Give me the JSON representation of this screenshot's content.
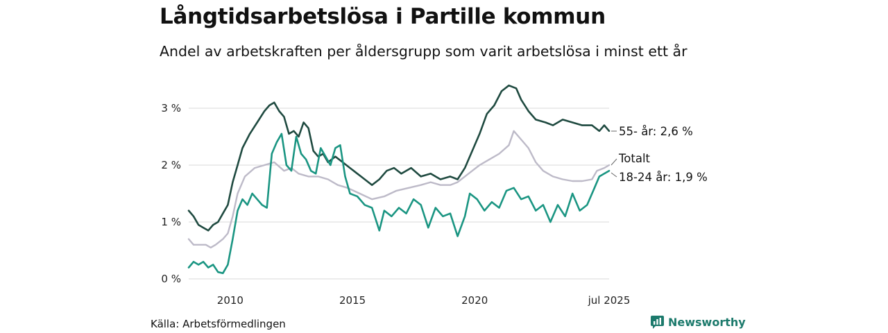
{
  "title": "Långtidsarbetslösa i Partille kommun",
  "subtitle": "Andel av arbetskraften per åldersgrupp som varit arbetslösa i minst ett år",
  "source": "Källa: Arbetsförmedlingen",
  "brand": {
    "name": "Newsworthy",
    "color": "#1c7a6c"
  },
  "chart_data": {
    "type": "line",
    "title": "Långtidsarbetslösa i Partille kommun",
    "subtitle": "Andel av arbetskraften per åldersgrupp som varit arbetslösa i minst ett år",
    "xlabel": "",
    "ylabel": "",
    "xlim": [
      2008.3,
      2025.5
    ],
    "ylim": [
      0,
      3.5
    ],
    "grid": true,
    "legend": "end-of-line labels",
    "x_ticks": [
      {
        "value": 2010,
        "label": "2010"
      },
      {
        "value": 2015,
        "label": "2015"
      },
      {
        "value": 2020,
        "label": "2020"
      },
      {
        "value": 2025.5,
        "label": "jul 2025"
      }
    ],
    "y_ticks": [
      {
        "value": 0,
        "label": "0 %"
      },
      {
        "value": 1,
        "label": "1 %"
      },
      {
        "value": 2,
        "label": "2 %"
      },
      {
        "value": 3,
        "label": "3 %"
      }
    ],
    "series": [
      {
        "name": "Totalt",
        "end_label": "Totalt",
        "color": "#bdbac8",
        "points": [
          [
            2008.3,
            0.7
          ],
          [
            2008.5,
            0.6
          ],
          [
            2009.0,
            0.6
          ],
          [
            2009.2,
            0.55
          ],
          [
            2009.4,
            0.6
          ],
          [
            2009.7,
            0.7
          ],
          [
            2009.9,
            0.8
          ],
          [
            2010.1,
            1.1
          ],
          [
            2010.3,
            1.5
          ],
          [
            2010.6,
            1.8
          ],
          [
            2011.0,
            1.95
          ],
          [
            2011.4,
            2.0
          ],
          [
            2011.8,
            2.05
          ],
          [
            2012.2,
            1.9
          ],
          [
            2012.5,
            1.95
          ],
          [
            2012.8,
            1.85
          ],
          [
            2013.2,
            1.8
          ],
          [
            2013.6,
            1.8
          ],
          [
            2014.0,
            1.75
          ],
          [
            2014.4,
            1.65
          ],
          [
            2014.8,
            1.6
          ],
          [
            2015.3,
            1.5
          ],
          [
            2015.8,
            1.4
          ],
          [
            2016.3,
            1.45
          ],
          [
            2016.8,
            1.55
          ],
          [
            2017.3,
            1.6
          ],
          [
            2017.8,
            1.65
          ],
          [
            2018.2,
            1.7
          ],
          [
            2018.6,
            1.65
          ],
          [
            2019.0,
            1.65
          ],
          [
            2019.3,
            1.7
          ],
          [
            2019.6,
            1.8
          ],
          [
            2019.9,
            1.9
          ],
          [
            2020.2,
            2.0
          ],
          [
            2020.6,
            2.1
          ],
          [
            2021.0,
            2.2
          ],
          [
            2021.4,
            2.35
          ],
          [
            2021.6,
            2.6
          ],
          [
            2021.9,
            2.45
          ],
          [
            2022.2,
            2.3
          ],
          [
            2022.5,
            2.05
          ],
          [
            2022.8,
            1.9
          ],
          [
            2023.2,
            1.8
          ],
          [
            2023.6,
            1.75
          ],
          [
            2024.0,
            1.72
          ],
          [
            2024.4,
            1.72
          ],
          [
            2024.8,
            1.75
          ],
          [
            2025.0,
            1.9
          ],
          [
            2025.3,
            1.95
          ],
          [
            2025.5,
            2.0
          ]
        ]
      },
      {
        "name": "55- år",
        "end_label": "55- år: 2,6 %",
        "color": "#1f4a40",
        "points": [
          [
            2008.3,
            1.2
          ],
          [
            2008.5,
            1.1
          ],
          [
            2008.7,
            0.95
          ],
          [
            2008.9,
            0.9
          ],
          [
            2009.1,
            0.85
          ],
          [
            2009.3,
            0.95
          ],
          [
            2009.5,
            1.0
          ],
          [
            2009.7,
            1.15
          ],
          [
            2009.9,
            1.3
          ],
          [
            2010.1,
            1.7
          ],
          [
            2010.3,
            2.0
          ],
          [
            2010.5,
            2.3
          ],
          [
            2010.8,
            2.55
          ],
          [
            2011.1,
            2.75
          ],
          [
            2011.4,
            2.95
          ],
          [
            2011.6,
            3.05
          ],
          [
            2011.8,
            3.1
          ],
          [
            2012.0,
            2.95
          ],
          [
            2012.2,
            2.85
          ],
          [
            2012.4,
            2.55
          ],
          [
            2012.6,
            2.6
          ],
          [
            2012.8,
            2.5
          ],
          [
            2013.0,
            2.75
          ],
          [
            2013.2,
            2.65
          ],
          [
            2013.4,
            2.25
          ],
          [
            2013.6,
            2.15
          ],
          [
            2013.8,
            2.2
          ],
          [
            2014.0,
            2.05
          ],
          [
            2014.3,
            2.15
          ],
          [
            2014.6,
            2.05
          ],
          [
            2014.9,
            1.95
          ],
          [
            2015.2,
            1.85
          ],
          [
            2015.5,
            1.75
          ],
          [
            2015.8,
            1.65
          ],
          [
            2016.1,
            1.75
          ],
          [
            2016.4,
            1.9
          ],
          [
            2016.7,
            1.95
          ],
          [
            2017.0,
            1.85
          ],
          [
            2017.4,
            1.95
          ],
          [
            2017.8,
            1.8
          ],
          [
            2018.2,
            1.85
          ],
          [
            2018.6,
            1.75
          ],
          [
            2019.0,
            1.8
          ],
          [
            2019.3,
            1.75
          ],
          [
            2019.6,
            1.95
          ],
          [
            2019.9,
            2.25
          ],
          [
            2020.2,
            2.55
          ],
          [
            2020.5,
            2.9
          ],
          [
            2020.8,
            3.05
          ],
          [
            2021.1,
            3.3
          ],
          [
            2021.4,
            3.4
          ],
          [
            2021.7,
            3.35
          ],
          [
            2021.9,
            3.15
          ],
          [
            2022.2,
            2.95
          ],
          [
            2022.5,
            2.8
          ],
          [
            2022.9,
            2.75
          ],
          [
            2023.2,
            2.7
          ],
          [
            2023.6,
            2.8
          ],
          [
            2024.0,
            2.75
          ],
          [
            2024.4,
            2.7
          ],
          [
            2024.8,
            2.7
          ],
          [
            2025.1,
            2.6
          ],
          [
            2025.3,
            2.7
          ],
          [
            2025.5,
            2.6
          ]
        ]
      },
      {
        "name": "18-24 år",
        "end_label": "18-24 år: 1,9 %",
        "color": "#1a9582",
        "points": [
          [
            2008.3,
            0.2
          ],
          [
            2008.5,
            0.3
          ],
          [
            2008.7,
            0.25
          ],
          [
            2008.9,
            0.3
          ],
          [
            2009.1,
            0.2
          ],
          [
            2009.3,
            0.25
          ],
          [
            2009.5,
            0.12
          ],
          [
            2009.7,
            0.1
          ],
          [
            2009.9,
            0.25
          ],
          [
            2010.1,
            0.7
          ],
          [
            2010.3,
            1.2
          ],
          [
            2010.5,
            1.4
          ],
          [
            2010.7,
            1.3
          ],
          [
            2010.9,
            1.5
          ],
          [
            2011.1,
            1.4
          ],
          [
            2011.3,
            1.3
          ],
          [
            2011.5,
            1.25
          ],
          [
            2011.7,
            2.2
          ],
          [
            2011.9,
            2.4
          ],
          [
            2012.1,
            2.55
          ],
          [
            2012.3,
            2.0
          ],
          [
            2012.5,
            1.9
          ],
          [
            2012.7,
            2.5
          ],
          [
            2012.9,
            2.2
          ],
          [
            2013.1,
            2.1
          ],
          [
            2013.3,
            1.9
          ],
          [
            2013.5,
            1.85
          ],
          [
            2013.7,
            2.3
          ],
          [
            2013.9,
            2.15
          ],
          [
            2014.1,
            2.0
          ],
          [
            2014.3,
            2.3
          ],
          [
            2014.5,
            2.35
          ],
          [
            2014.7,
            1.8
          ],
          [
            2014.9,
            1.5
          ],
          [
            2015.2,
            1.45
          ],
          [
            2015.5,
            1.3
          ],
          [
            2015.8,
            1.25
          ],
          [
            2016.1,
            0.85
          ],
          [
            2016.3,
            1.2
          ],
          [
            2016.6,
            1.1
          ],
          [
            2016.9,
            1.25
          ],
          [
            2017.2,
            1.15
          ],
          [
            2017.5,
            1.4
          ],
          [
            2017.8,
            1.3
          ],
          [
            2018.1,
            0.9
          ],
          [
            2018.4,
            1.25
          ],
          [
            2018.7,
            1.1
          ],
          [
            2019.0,
            1.15
          ],
          [
            2019.3,
            0.75
          ],
          [
            2019.6,
            1.1
          ],
          [
            2019.8,
            1.5
          ],
          [
            2020.1,
            1.4
          ],
          [
            2020.4,
            1.2
          ],
          [
            2020.7,
            1.35
          ],
          [
            2021.0,
            1.25
          ],
          [
            2021.3,
            1.55
          ],
          [
            2021.6,
            1.6
          ],
          [
            2021.9,
            1.4
          ],
          [
            2022.2,
            1.45
          ],
          [
            2022.5,
            1.2
          ],
          [
            2022.8,
            1.3
          ],
          [
            2023.1,
            1.0
          ],
          [
            2023.4,
            1.3
          ],
          [
            2023.7,
            1.1
          ],
          [
            2024.0,
            1.5
          ],
          [
            2024.3,
            1.2
          ],
          [
            2024.6,
            1.3
          ],
          [
            2024.9,
            1.6
          ],
          [
            2025.1,
            1.8
          ],
          [
            2025.3,
            1.85
          ],
          [
            2025.5,
            1.9
          ]
        ]
      }
    ]
  }
}
